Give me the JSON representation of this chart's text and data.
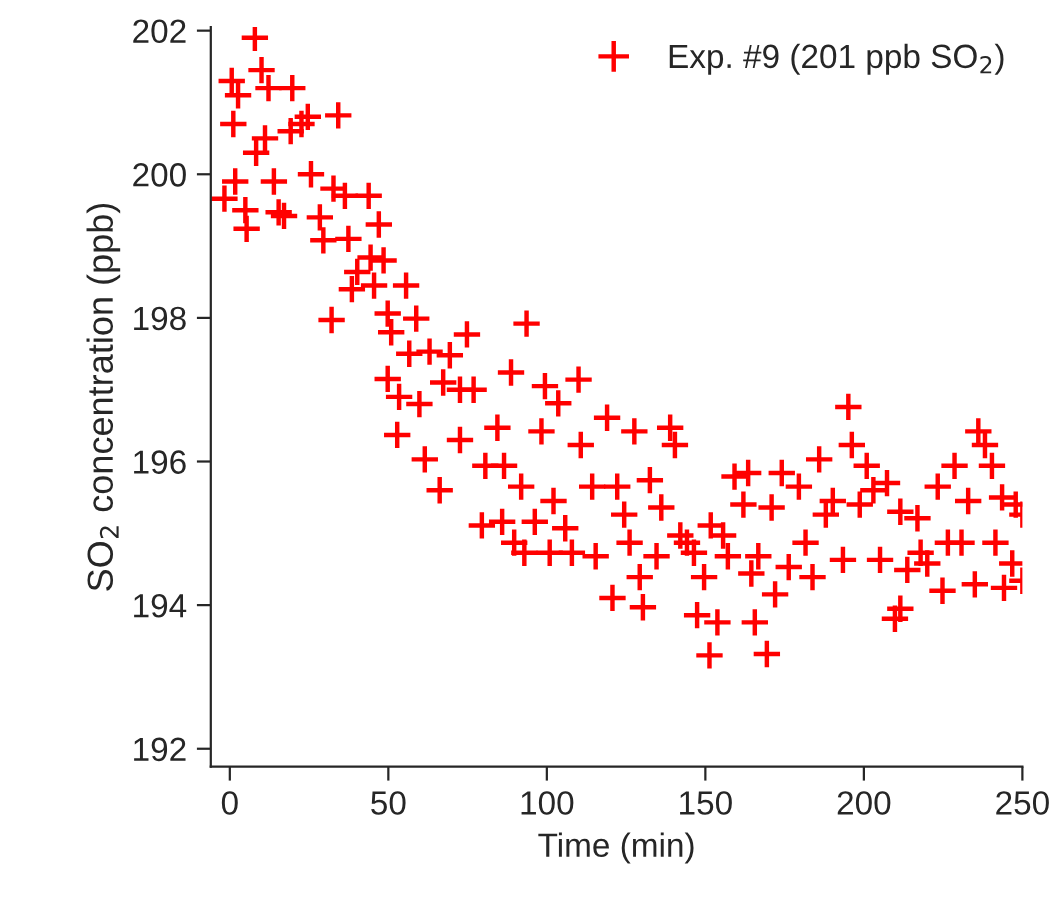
{
  "chart_data": {
    "type": "scatter",
    "xlabel": "Time (min)",
    "ylabel": "SO$_{2}$ concentration (ppb)",
    "xlim": [
      -6,
      250
    ],
    "ylim": [
      191.75,
      202.05
    ],
    "xticks": [
      0,
      50,
      100,
      150,
      200,
      250
    ],
    "yticks": [
      192,
      194,
      196,
      198,
      200,
      202
    ],
    "grid": false,
    "legend": "top right",
    "marker": "cross",
    "x": [
      -1.7,
      0.6,
      1.1,
      1.7,
      2.6,
      4.9,
      5.3,
      7.9,
      8.3,
      10,
      11.1,
      12.2,
      13.9,
      15.4,
      17.1,
      19.7,
      19.2,
      22.6,
      24.6,
      25.6,
      28.4,
      29.5,
      32.1,
      34.2,
      32.7,
      36.3,
      37.4,
      38.5,
      40.2,
      43.8,
      44.4,
      45.5,
      47,
      48.5,
      49.8,
      50.9,
      49.8,
      52.8,
      53.4,
      55.6,
      56.6,
      58.8,
      59.8,
      61.5,
      63,
      66.2,
      67.3,
      69.4,
      72.6,
      74.8,
      72.6,
      76.9,
      79.5,
      80.6,
      84.4,
      85.9,
      86.5,
      88.7,
      89.7,
      91.9,
      92.9,
      93.6,
      96.2,
      98.3,
      99.4,
      100.9,
      102.1,
      103.6,
      105.8,
      107.9,
      110,
      110.7,
      114.3,
      115.4,
      119,
      120.7,
      122.2,
      124.4,
      126.1,
      127.6,
      129.3,
      130.3,
      132.5,
      134.6,
      136.1,
      138.9,
      140.4,
      142.1,
      144.2,
      146.4,
      147.4,
      149.6,
      151.3,
      151.7,
      153.8,
      155.6,
      157.1,
      159.2,
      162,
      163.5,
      164.5,
      165.6,
      166.7,
      169.4,
      170.9,
      172,
      174.1,
      176.3,
      179.5,
      181.6,
      183.8,
      185.9,
      188,
      190.2,
      193.4,
      195.1,
      196.2,
      198.7,
      200.9,
      203,
      205.1,
      207.3,
      209.8,
      211.5,
      211.5,
      213.7,
      216.9,
      217.9,
      220,
      223.3,
      224.8,
      226.5,
      228.6,
      230.8,
      232.9,
      235,
      236.1,
      238.2,
      240.4,
      241.5,
      243.6,
      244.2,
      246.8,
      247.9,
      250,
      250
    ],
    "series": [
      {
        "name": "Exp. #9 (201 ppb SO$_{2}$)",
        "color": "#ff0000",
        "values": [
          199.66,
          201.3,
          200.7,
          199.9,
          201.1,
          199.5,
          199.24,
          201.9,
          200.3,
          201.45,
          200.5,
          201.2,
          199.9,
          199.47,
          199.42,
          201.2,
          200.6,
          200.7,
          200.8,
          200.0,
          199.4,
          199.08,
          197.97,
          200.82,
          199.8,
          199.7,
          199.1,
          198.4,
          198.64,
          199.7,
          198.84,
          198.45,
          199.3,
          198.8,
          198.06,
          197.8,
          197.15,
          196.37,
          196.9,
          198.45,
          197.5,
          197.99,
          196.8,
          196.03,
          197.53,
          195.6,
          197.1,
          197.48,
          197.0,
          197.77,
          196.3,
          197.0,
          195.11,
          195.94,
          196.47,
          195.16,
          195.94,
          197.24,
          194.87,
          195.65,
          194.73,
          197.92,
          195.16,
          196.42,
          197.05,
          194.73,
          195.45,
          196.81,
          195.07,
          194.73,
          197.14,
          196.23,
          195.65,
          194.68,
          196.61,
          194.1,
          195.65,
          195.26,
          194.87,
          196.42,
          194.39,
          193.97,
          195.74,
          194.68,
          195.36,
          196.47,
          196.23,
          194.97,
          194.87,
          194.73,
          193.86,
          194.39,
          193.3,
          195.11,
          193.76,
          194.97,
          194.68,
          195.79,
          195.4,
          195.84,
          194.44,
          193.76,
          194.68,
          193.32,
          195.36,
          194.15,
          195.84,
          194.53,
          195.65,
          194.87,
          194.39,
          196.03,
          195.26,
          195.45,
          194.63,
          196.76,
          196.23,
          195.4,
          195.94,
          195.6,
          194.63,
          195.7,
          193.81,
          193.95,
          195.3,
          194.49,
          195.21,
          194.73,
          194.58,
          195.65,
          194.2,
          194.87,
          195.94,
          194.87,
          195.45,
          194.29,
          196.42,
          196.23,
          195.94,
          194.87,
          195.5,
          194.24,
          194.58,
          195.4,
          195.26,
          194.34
        ]
      }
    ]
  }
}
